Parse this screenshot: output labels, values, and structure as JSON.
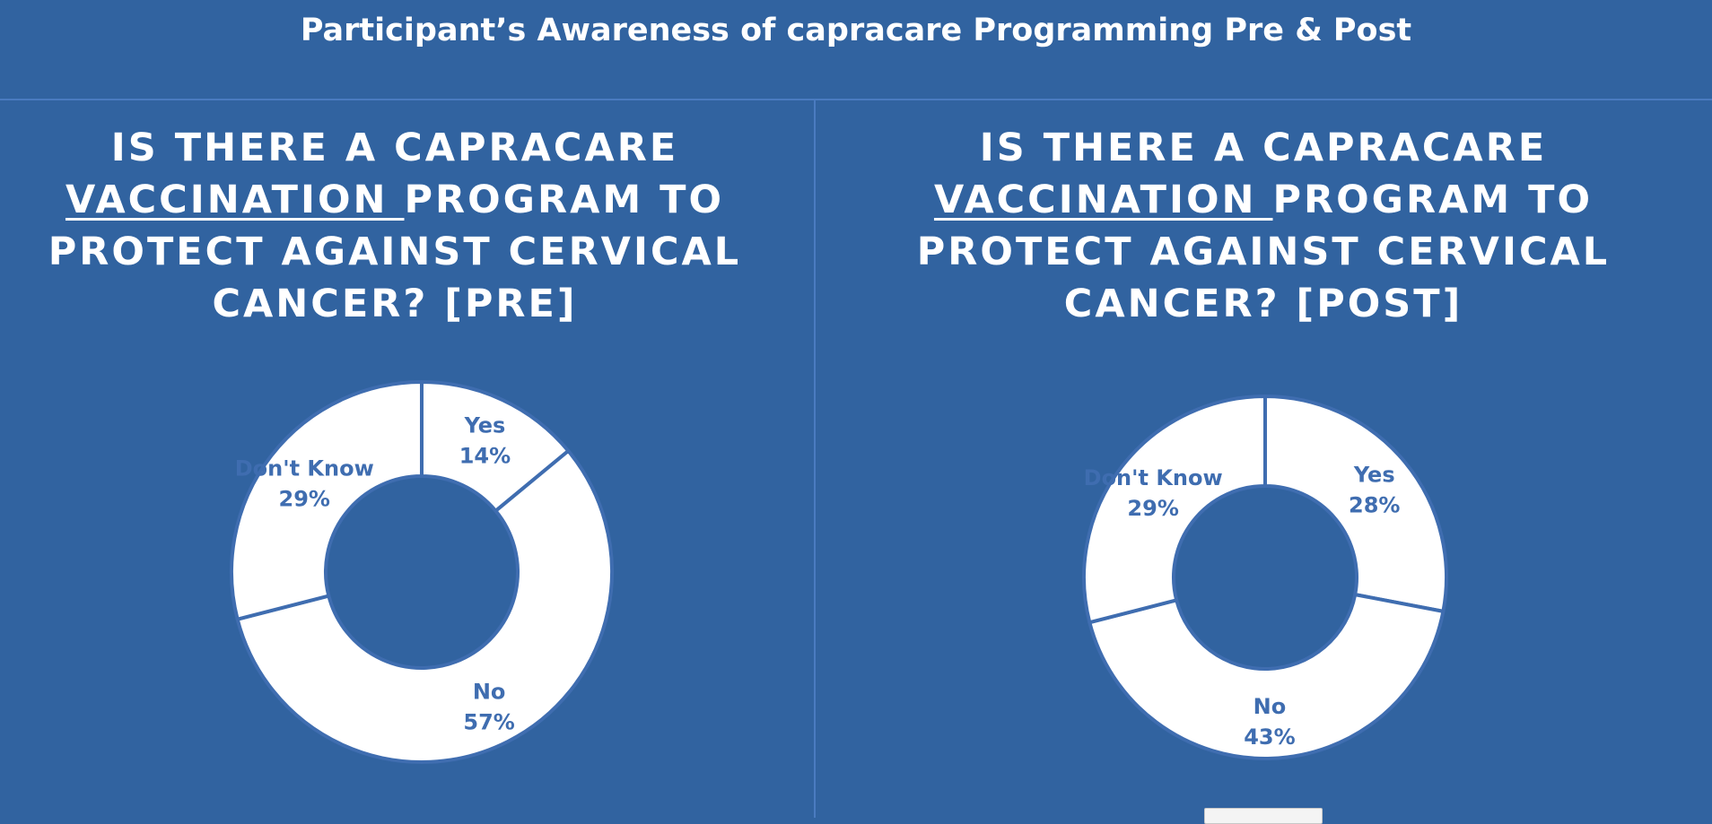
{
  "page": {
    "title": "Participant’s Awareness of capracare Programming Pre & Post",
    "background_color": "#3163a0",
    "slice_fill": "#ffffff",
    "label_color": "#3f6db0"
  },
  "chart_data": [
    {
      "type": "pie",
      "variant": "donut",
      "title_parts": [
        "IS THERE A CAPRACARE",
        "VACCINATION ",
        "PROGRAM TO",
        "PROTECT AGAINST CERVICAL",
        "CANCER? [PRE]"
      ],
      "categories": [
        "Yes",
        "No",
        "Don't Know"
      ],
      "values": [
        14,
        57,
        29
      ],
      "labels": [
        "14%",
        "57%",
        "29%"
      ]
    },
    {
      "type": "pie",
      "variant": "donut",
      "title_parts": [
        "IS THERE A CAPRACARE",
        "VACCINATION ",
        "PROGRAM TO",
        "PROTECT AGAINST CERVICAL",
        "CANCER? [POST]"
      ],
      "categories": [
        "Yes",
        "No",
        "Don't Know"
      ],
      "values": [
        28,
        43,
        29
      ],
      "labels": [
        "28%",
        "43%",
        "29%"
      ]
    }
  ]
}
